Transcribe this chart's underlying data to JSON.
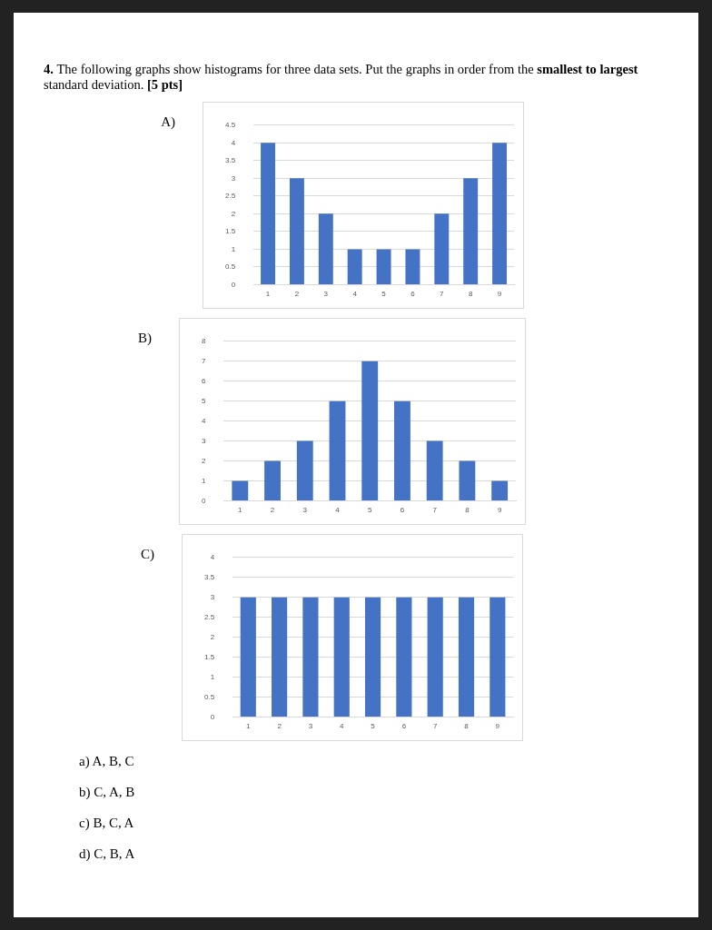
{
  "chart_data": [
    {
      "type": "other",
      "annotations": [
        "4.",
        "The following graphs show histograms for three data sets. Put the graphs in order from the ",
        "smallest to largest",
        " standard deviation. ",
        "[5 pts]"
      ]
    },
    {
      "type": "bar",
      "title": "A)",
      "categories": [
        "1",
        "2",
        "3",
        "4",
        "5",
        "6",
        "7",
        "8",
        "9"
      ],
      "values": [
        4,
        3,
        2,
        1,
        1,
        1,
        2,
        3,
        4
      ],
      "color": "#4472c4",
      "ylim": [
        0,
        4.5
      ],
      "yticks": [
        0,
        0.5,
        1,
        1.5,
        2,
        2.5,
        3,
        3.5,
        4,
        4.5
      ],
      "grid": "y"
    },
    {
      "type": "bar",
      "title": "B)",
      "categories": [
        "1",
        "2",
        "3",
        "4",
        "5",
        "6",
        "7",
        "8",
        "9"
      ],
      "values": [
        1,
        2,
        3,
        5,
        7,
        5,
        3,
        2,
        1
      ],
      "color": "#4472c4",
      "ylim": [
        0,
        8
      ],
      "yticks": [
        0,
        1,
        2,
        3,
        4,
        5,
        6,
        7,
        8
      ],
      "grid": "y"
    },
    {
      "type": "bar",
      "title": "C)",
      "categories": [
        "1",
        "2",
        "3",
        "4",
        "5",
        "6",
        "7",
        "8",
        "9"
      ],
      "values": [
        3,
        3,
        3,
        3,
        3,
        3,
        3,
        3,
        3
      ],
      "color": "#4472c4",
      "ylim": [
        0,
        4
      ],
      "yticks": [
        0,
        0.5,
        1,
        1.5,
        2,
        2.5,
        3,
        3.5,
        4
      ],
      "grid": "y"
    },
    {
      "type": "other",
      "annotations": [
        "a)  A, B, C",
        "b)  C, A, B",
        "c)  B, C, A",
        "d)  C, B, A"
      ]
    }
  ]
}
